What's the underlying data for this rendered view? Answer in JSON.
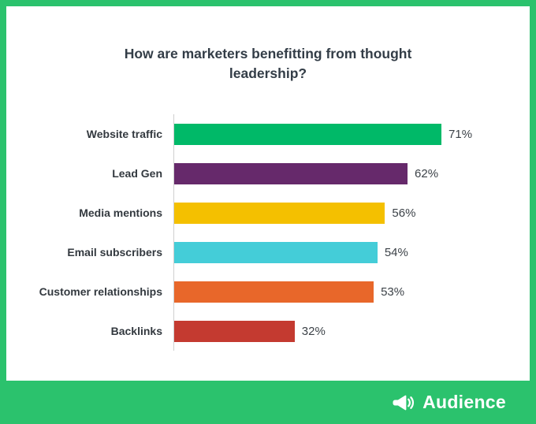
{
  "title": "How are marketers benefitting from thought leadership?",
  "brand": {
    "name": "Audience",
    "logo": "megaphone-icon"
  },
  "colors": {
    "frame_green": "#2bc26d",
    "title_text": "#333d47",
    "axis_line": "#cfcfcf"
  },
  "chart_data": {
    "type": "bar",
    "orientation": "horizontal",
    "title": "How are marketers benefitting from thought leadership?",
    "categories": [
      "Website traffic",
      "Lead Gen",
      "Media mentions",
      "Email subscribers",
      "Customer relationships",
      "Backlinks"
    ],
    "values": [
      71,
      62,
      56,
      54,
      53,
      32
    ],
    "value_suffix": "%",
    "bar_colors": [
      "#00b968",
      "#66296b",
      "#f4c000",
      "#44cdd8",
      "#e8672a",
      "#c43a30"
    ],
    "xlim": [
      0,
      80
    ],
    "xlabel": "",
    "ylabel": "",
    "grid": false,
    "legend": false
  }
}
